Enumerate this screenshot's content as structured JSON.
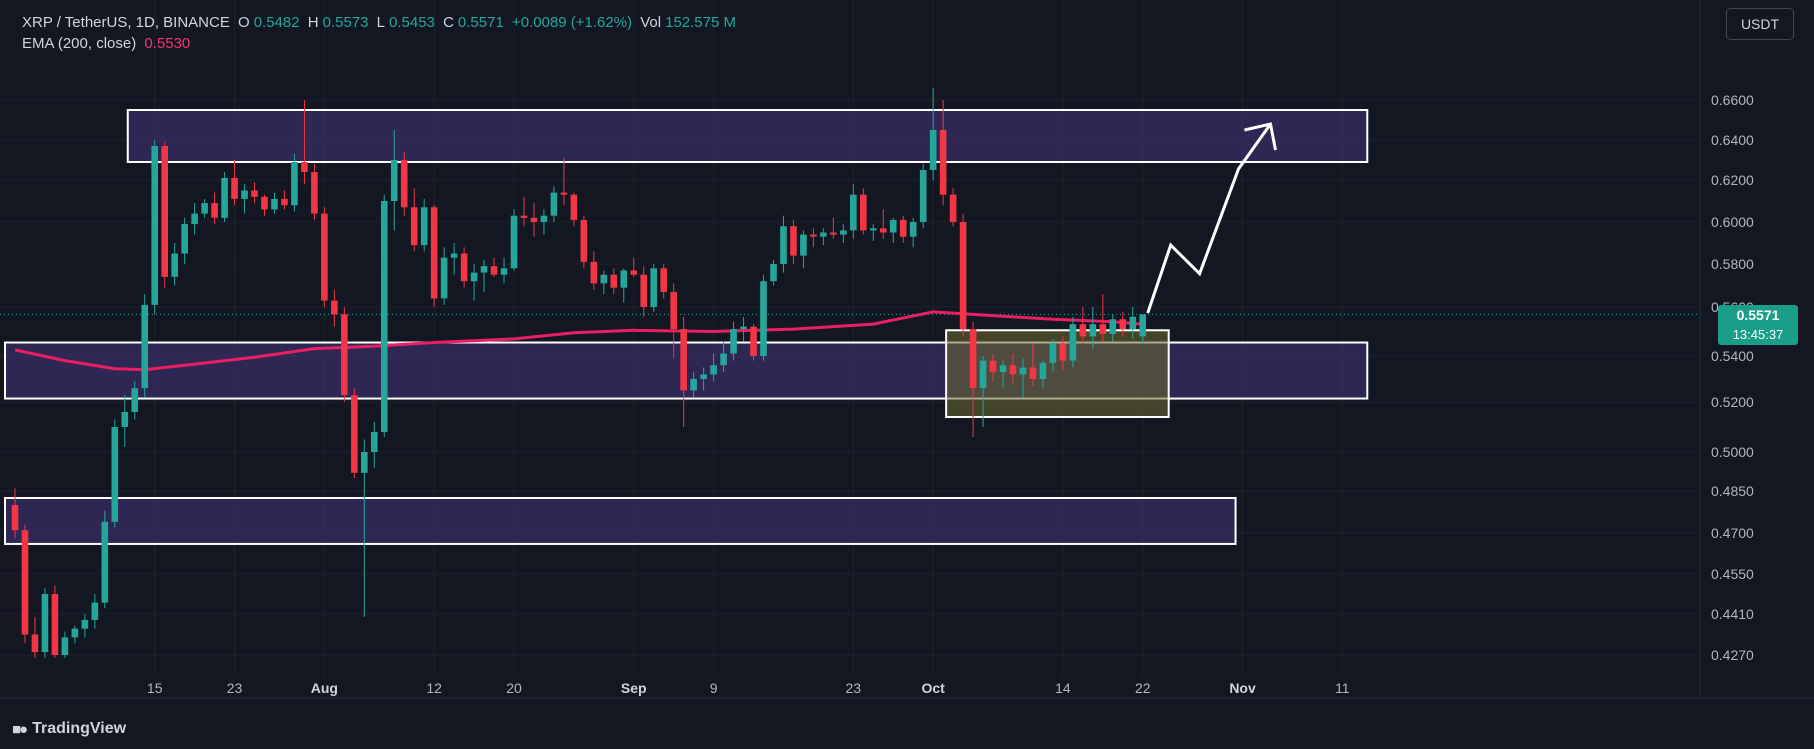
{
  "legend": {
    "symbol": "XRP / TetherUS, 1D, BINANCE",
    "o_key": "O",
    "o_val": "0.5482",
    "h_key": "H",
    "h_val": "0.5573",
    "l_key": "L",
    "l_val": "0.5453",
    "c_key": "C",
    "c_val": "0.5571",
    "change": "+0.0089 (+1.62%)",
    "vol_key": "Vol",
    "vol_val": "152.575 M",
    "ema_label": "EMA (200, close)",
    "ema_val": "0.5530"
  },
  "currency_button": "USDT",
  "last_price": {
    "value": "0.5571",
    "countdown": "13:45:37"
  },
  "footer": {
    "brand": "TradingView"
  },
  "colors": {
    "background": "#131722",
    "up": "#26a69a",
    "down": "#f23645",
    "ema": "#e91e63",
    "zone": "#5b3fa3",
    "consolidation": "#6b6a2f"
  },
  "chart_data": {
    "type": "candlestick",
    "title": "XRP / TetherUS, 1D, BINANCE",
    "y_ticks": [
      "0.6600",
      "0.6400",
      "0.6200",
      "0.6000",
      "0.5800",
      "0.5600",
      "0.5400",
      "0.5200",
      "0.5000",
      "0.4850",
      "0.4700",
      "0.4550",
      "0.4410",
      "0.4270"
    ],
    "y_tick_values": [
      0.66,
      0.64,
      0.62,
      0.6,
      0.58,
      0.56,
      0.54,
      0.52,
      0.5,
      0.485,
      0.47,
      0.455,
      0.441,
      0.427
    ],
    "x_ticks": [
      {
        "label": "15",
        "bar": 14,
        "bold": false
      },
      {
        "label": "23",
        "bar": 22,
        "bold": false
      },
      {
        "label": "Aug",
        "bar": 31,
        "bold": true
      },
      {
        "label": "12",
        "bar": 42,
        "bold": false
      },
      {
        "label": "20",
        "bar": 50,
        "bold": false
      },
      {
        "label": "Sep",
        "bar": 62,
        "bold": true
      },
      {
        "label": "9",
        "bar": 70,
        "bold": false
      },
      {
        "label": "23",
        "bar": 84,
        "bold": false
      },
      {
        "label": "Oct",
        "bar": 92,
        "bold": true
      },
      {
        "label": "14",
        "bar": 105,
        "bold": false
      },
      {
        "label": "22",
        "bar": 113,
        "bold": false
      },
      {
        "label": "Nov",
        "bar": 123,
        "bold": true
      },
      {
        "label": "11",
        "bar": 133,
        "bold": false
      }
    ],
    "candles": [
      [
        0.48,
        0.486,
        0.468,
        0.471
      ],
      [
        0.471,
        0.473,
        0.431,
        0.434
      ],
      [
        0.434,
        0.44,
        0.426,
        0.428
      ],
      [
        0.428,
        0.45,
        0.426,
        0.448
      ],
      [
        0.448,
        0.451,
        0.426,
        0.427
      ],
      [
        0.427,
        0.435,
        0.426,
        0.433
      ],
      [
        0.433,
        0.437,
        0.431,
        0.436
      ],
      [
        0.436,
        0.441,
        0.433,
        0.439
      ],
      [
        0.439,
        0.448,
        0.436,
        0.445
      ],
      [
        0.445,
        0.478,
        0.443,
        0.474
      ],
      [
        0.474,
        0.513,
        0.472,
        0.51
      ],
      [
        0.51,
        0.523,
        0.502,
        0.516
      ],
      [
        0.516,
        0.529,
        0.513,
        0.526
      ],
      [
        0.526,
        0.566,
        0.522,
        0.561
      ],
      [
        0.561,
        0.64,
        0.557,
        0.637
      ],
      [
        0.637,
        0.639,
        0.569,
        0.574
      ],
      [
        0.574,
        0.59,
        0.57,
        0.585
      ],
      [
        0.585,
        0.602,
        0.58,
        0.599
      ],
      [
        0.599,
        0.609,
        0.594,
        0.604
      ],
      [
        0.604,
        0.611,
        0.602,
        0.609
      ],
      [
        0.609,
        0.614,
        0.599,
        0.602
      ],
      [
        0.602,
        0.624,
        0.6,
        0.621
      ],
      [
        0.621,
        0.63,
        0.608,
        0.611
      ],
      [
        0.611,
        0.618,
        0.604,
        0.615
      ],
      [
        0.615,
        0.619,
        0.609,
        0.612
      ],
      [
        0.612,
        0.613,
        0.603,
        0.606
      ],
      [
        0.606,
        0.614,
        0.604,
        0.611
      ],
      [
        0.611,
        0.615,
        0.606,
        0.608
      ],
      [
        0.608,
        0.633,
        0.605,
        0.629
      ],
      [
        0.629,
        0.66,
        0.618,
        0.624
      ],
      [
        0.624,
        0.628,
        0.601,
        0.604
      ],
      [
        0.604,
        0.607,
        0.56,
        0.563
      ],
      [
        0.563,
        0.568,
        0.552,
        0.557
      ],
      [
        0.557,
        0.56,
        0.52,
        0.523
      ],
      [
        0.523,
        0.526,
        0.49,
        0.492
      ],
      [
        0.492,
        0.505,
        0.44,
        0.5
      ],
      [
        0.5,
        0.512,
        0.494,
        0.508
      ],
      [
        0.508,
        0.613,
        0.506,
        0.61
      ],
      [
        0.61,
        0.645,
        0.596,
        0.63
      ],
      [
        0.63,
        0.634,
        0.603,
        0.607
      ],
      [
        0.607,
        0.616,
        0.586,
        0.589
      ],
      [
        0.589,
        0.611,
        0.586,
        0.607
      ],
      [
        0.607,
        0.608,
        0.56,
        0.564
      ],
      [
        0.564,
        0.588,
        0.561,
        0.583
      ],
      [
        0.583,
        0.59,
        0.575,
        0.585
      ],
      [
        0.585,
        0.588,
        0.569,
        0.572
      ],
      [
        0.572,
        0.58,
        0.563,
        0.576
      ],
      [
        0.576,
        0.582,
        0.567,
        0.579
      ],
      [
        0.579,
        0.583,
        0.574,
        0.575
      ],
      [
        0.575,
        0.583,
        0.571,
        0.578
      ],
      [
        0.578,
        0.606,
        0.577,
        0.603
      ],
      [
        0.603,
        0.612,
        0.598,
        0.602
      ],
      [
        0.602,
        0.609,
        0.593,
        0.6
      ],
      [
        0.6,
        0.606,
        0.594,
        0.603
      ],
      [
        0.603,
        0.617,
        0.6,
        0.614
      ],
      [
        0.614,
        0.631,
        0.608,
        0.613
      ],
      [
        0.613,
        0.614,
        0.598,
        0.601
      ],
      [
        0.601,
        0.603,
        0.578,
        0.581
      ],
      [
        0.581,
        0.586,
        0.568,
        0.571
      ],
      [
        0.571,
        0.577,
        0.566,
        0.575
      ],
      [
        0.575,
        0.578,
        0.566,
        0.569
      ],
      [
        0.569,
        0.578,
        0.562,
        0.577
      ],
      [
        0.577,
        0.583,
        0.574,
        0.575
      ],
      [
        0.575,
        0.579,
        0.556,
        0.56
      ],
      [
        0.56,
        0.58,
        0.558,
        0.578
      ],
      [
        0.578,
        0.58,
        0.564,
        0.567
      ],
      [
        0.567,
        0.571,
        0.539,
        0.551
      ],
      [
        0.551,
        0.556,
        0.51,
        0.525
      ],
      [
        0.525,
        0.533,
        0.522,
        0.53
      ],
      [
        0.53,
        0.535,
        0.525,
        0.532
      ],
      [
        0.532,
        0.541,
        0.529,
        0.536
      ],
      [
        0.536,
        0.546,
        0.533,
        0.541
      ],
      [
        0.541,
        0.554,
        0.538,
        0.551
      ],
      [
        0.551,
        0.556,
        0.546,
        0.552
      ],
      [
        0.552,
        0.553,
        0.538,
        0.54
      ],
      [
        0.54,
        0.575,
        0.538,
        0.572
      ],
      [
        0.572,
        0.582,
        0.57,
        0.58
      ],
      [
        0.58,
        0.603,
        0.576,
        0.598
      ],
      [
        0.598,
        0.601,
        0.58,
        0.584
      ],
      [
        0.584,
        0.596,
        0.578,
        0.594
      ],
      [
        0.594,
        0.597,
        0.588,
        0.593
      ],
      [
        0.593,
        0.597,
        0.589,
        0.595
      ],
      [
        0.595,
        0.602,
        0.592,
        0.594
      ],
      [
        0.594,
        0.599,
        0.59,
        0.596
      ],
      [
        0.596,
        0.618,
        0.592,
        0.613
      ],
      [
        0.613,
        0.616,
        0.594,
        0.596
      ],
      [
        0.596,
        0.599,
        0.591,
        0.597
      ],
      [
        0.597,
        0.606,
        0.592,
        0.595
      ],
      [
        0.595,
        0.602,
        0.59,
        0.601
      ],
      [
        0.601,
        0.603,
        0.59,
        0.593
      ],
      [
        0.593,
        0.602,
        0.588,
        0.6
      ],
      [
        0.6,
        0.628,
        0.597,
        0.625
      ],
      [
        0.625,
        0.666,
        0.62,
        0.645
      ],
      [
        0.645,
        0.66,
        0.608,
        0.613
      ],
      [
        0.613,
        0.616,
        0.598,
        0.6
      ],
      [
        0.6,
        0.604,
        0.548,
        0.551
      ],
      [
        0.551,
        0.554,
        0.506,
        0.526
      ],
      [
        0.526,
        0.54,
        0.51,
        0.538
      ],
      [
        0.538,
        0.541,
        0.529,
        0.533
      ],
      [
        0.533,
        0.538,
        0.526,
        0.536
      ],
      [
        0.536,
        0.541,
        0.528,
        0.532
      ],
      [
        0.532,
        0.539,
        0.522,
        0.535
      ],
      [
        0.535,
        0.545,
        0.527,
        0.53
      ],
      [
        0.53,
        0.538,
        0.526,
        0.537
      ],
      [
        0.537,
        0.547,
        0.533,
        0.545
      ],
      [
        0.545,
        0.548,
        0.534,
        0.538
      ],
      [
        0.538,
        0.556,
        0.535,
        0.553
      ],
      [
        0.553,
        0.56,
        0.545,
        0.548
      ],
      [
        0.548,
        0.56,
        0.543,
        0.553
      ],
      [
        0.553,
        0.566,
        0.546,
        0.549
      ],
      [
        0.549,
        0.557,
        0.546,
        0.555
      ],
      [
        0.555,
        0.558,
        0.548,
        0.551
      ],
      [
        0.551,
        0.56,
        0.547,
        0.556
      ],
      [
        0.548,
        0.557,
        0.545,
        0.557
      ]
    ],
    "ema": [
      [
        0,
        0.5425
      ],
      [
        5,
        0.538
      ],
      [
        10,
        0.5345
      ],
      [
        13,
        0.534
      ],
      [
        18,
        0.5365
      ],
      [
        24,
        0.5395
      ],
      [
        30,
        0.543
      ],
      [
        36,
        0.544
      ],
      [
        42,
        0.5455
      ],
      [
        50,
        0.547
      ],
      [
        56,
        0.5495
      ],
      [
        62,
        0.5505
      ],
      [
        70,
        0.55
      ],
      [
        78,
        0.551
      ],
      [
        86,
        0.553
      ],
      [
        92,
        0.558
      ],
      [
        98,
        0.5565
      ],
      [
        104,
        0.555
      ],
      [
        110,
        0.554
      ],
      [
        113,
        0.553
      ]
    ],
    "zones": [
      {
        "top": 0.655,
        "bottom": 0.629,
        "from_bar": 11.3,
        "to_bar": 135.5
      },
      {
        "top": 0.5455,
        "bottom": 0.5215,
        "from_bar": -1,
        "to_bar": 135.5
      },
      {
        "top": 0.4825,
        "bottom": 0.466,
        "from_bar": -1,
        "to_bar": 122.3
      }
    ],
    "consolidation_box": {
      "top": 0.5505,
      "bottom": 0.514,
      "from_bar": 93.3,
      "to_bar": 115.6
    },
    "projection_arrow": [
      [
        113.5,
        0.5575
      ],
      [
        115.8,
        0.589
      ],
      [
        118.7,
        0.5755
      ],
      [
        122.6,
        0.6255
      ],
      [
        125.8,
        0.648
      ]
    ]
  }
}
